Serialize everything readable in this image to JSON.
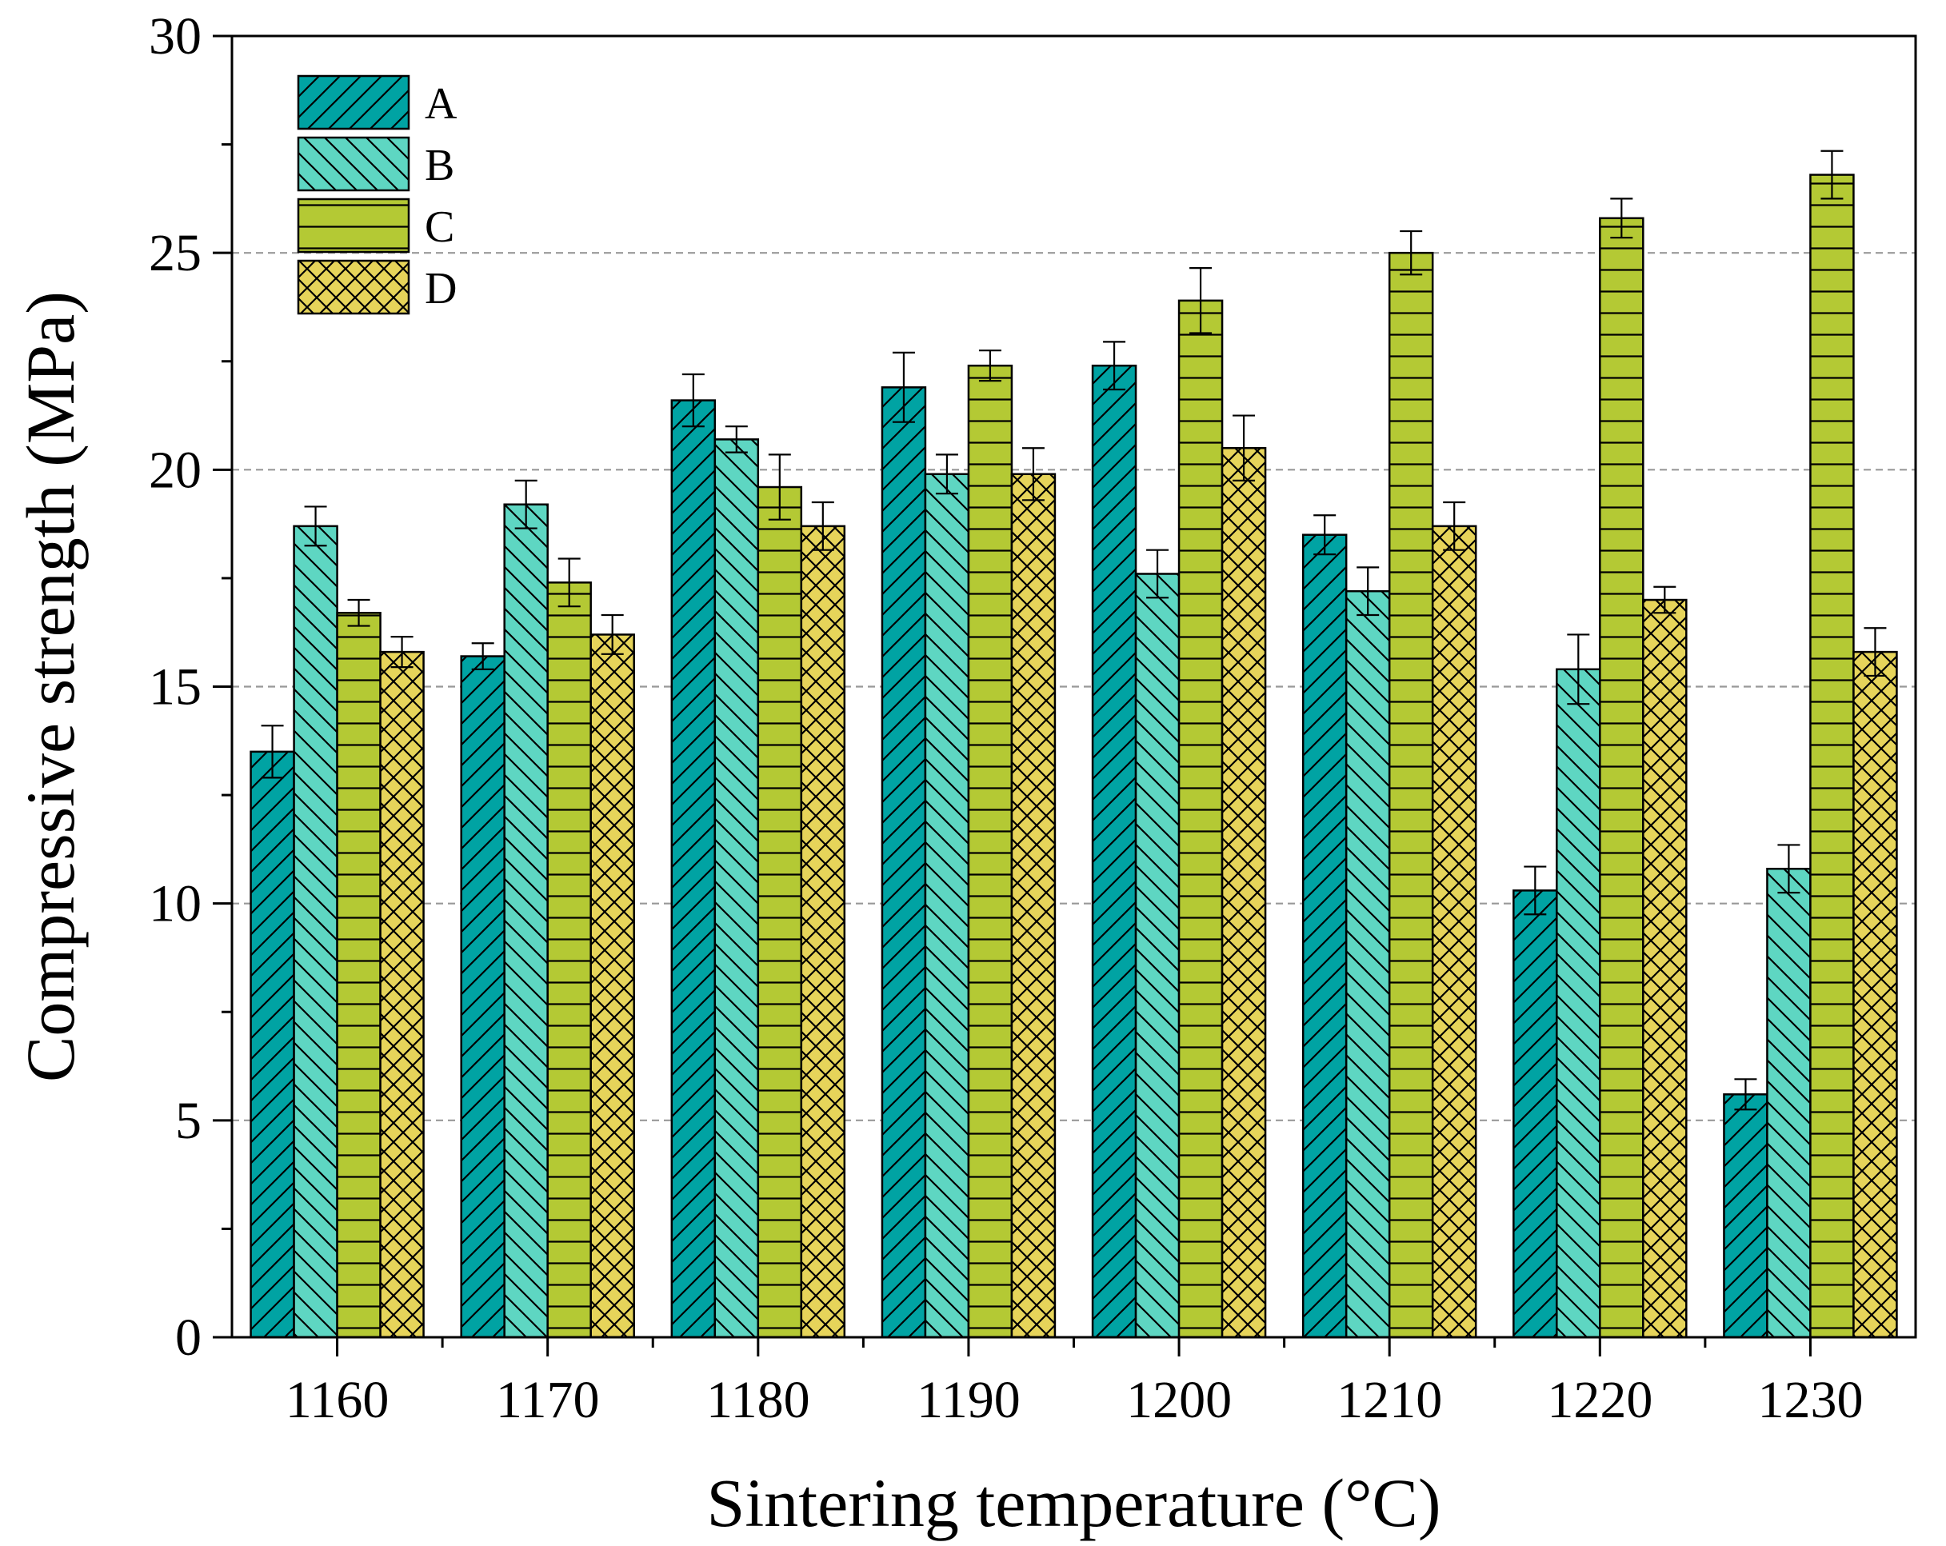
{
  "chart_data": {
    "type": "bar",
    "title": "",
    "xlabel": "Sintering temperature (°C)",
    "ylabel": "Compressive strength (MPa)",
    "ylim": [
      0,
      30
    ],
    "yticks": [
      "0",
      "5",
      "10",
      "15",
      "20",
      "25",
      "30"
    ],
    "ytick_values": [
      0,
      5,
      10,
      15,
      20,
      25,
      30
    ],
    "gridlines_at": [
      5,
      10,
      15,
      20,
      25
    ],
    "grid": "dashed horizontal",
    "legend_position": "top-left",
    "categories": [
      "1160",
      "1170",
      "1180",
      "1190",
      "1200",
      "1210",
      "1220",
      "1230"
    ],
    "series": [
      {
        "name": "A",
        "color": "#00a3a3",
        "hatch": "forward-diagonal",
        "values": [
          13.5,
          15.7,
          21.6,
          21.9,
          22.4,
          18.5,
          10.3,
          5.6
        ],
        "errors": [
          0.6,
          0.3,
          0.6,
          0.8,
          0.55,
          0.45,
          0.55,
          0.35
        ]
      },
      {
        "name": "B",
        "color": "#5ed6c2",
        "hatch": "back-diagonal",
        "values": [
          18.7,
          19.2,
          20.7,
          19.9,
          17.6,
          17.2,
          15.4,
          10.8
        ],
        "errors": [
          0.45,
          0.55,
          0.3,
          0.45,
          0.55,
          0.55,
          0.8,
          0.55
        ]
      },
      {
        "name": "C",
        "color": "#b4c934",
        "hatch": "horizontal",
        "values": [
          16.7,
          17.4,
          19.6,
          22.4,
          23.9,
          25.0,
          25.8,
          26.8
        ],
        "errors": [
          0.3,
          0.55,
          0.75,
          0.35,
          0.75,
          0.5,
          0.45,
          0.55
        ]
      },
      {
        "name": "D",
        "color": "#e6d45a",
        "hatch": "crosshatch",
        "values": [
          15.8,
          16.2,
          18.7,
          19.9,
          20.5,
          18.7,
          17.0,
          15.8
        ],
        "errors": [
          0.35,
          0.45,
          0.55,
          0.6,
          0.75,
          0.55,
          0.3,
          0.55
        ]
      }
    ]
  }
}
